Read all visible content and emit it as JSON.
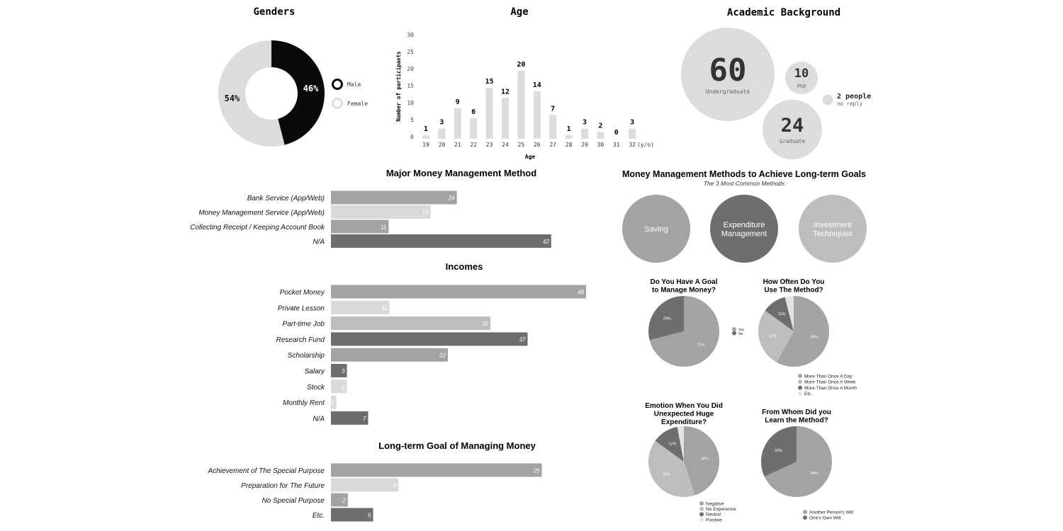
{
  "colors": {
    "black": "#0a0a0a",
    "light": "#dcdcdc",
    "mid": "#a3a3a3",
    "midlight": "#bdbdbd",
    "pale": "#d9d9d9",
    "dark": "#6e6e6e",
    "label": "#222222"
  },
  "chart_data": [
    {
      "id": "genders",
      "type": "pie",
      "title": "Genders",
      "slices": [
        {
          "label": "Male",
          "value": 46,
          "display": "46%",
          "color": "#0a0a0a"
        },
        {
          "label": "Female",
          "value": 54,
          "display": "54%",
          "color": "#dcdcdc"
        }
      ]
    },
    {
      "id": "age",
      "type": "bar",
      "title": "Age",
      "xlabel": "Age",
      "ylabel": "Number of participants",
      "unit": "(y/o)",
      "ylim": [
        0,
        30
      ],
      "yticks": [
        "0",
        "5",
        "10",
        "15",
        "20",
        "25",
        "30"
      ],
      "categories": [
        "19",
        "20",
        "21",
        "22",
        "23",
        "24",
        "25",
        "26",
        "27",
        "28",
        "29",
        "30",
        "31",
        "32"
      ],
      "values": [
        1,
        3,
        9,
        6,
        15,
        12,
        20,
        14,
        7,
        1,
        3,
        2,
        0,
        3
      ]
    },
    {
      "id": "academic",
      "type": "bubble",
      "title": "Academic Background",
      "items": [
        {
          "value": "60",
          "label": "Undergraduate"
        },
        {
          "value": "10",
          "label": "PhD"
        },
        {
          "value": "24",
          "label": "Graduate"
        },
        {
          "value": "2 people",
          "label": "no reply"
        }
      ]
    },
    {
      "id": "money-method",
      "type": "bar",
      "orientation": "horizontal",
      "title": "Major Money Management Method",
      "categories": [
        "Bank Service (App/Web)",
        "Money Management Service (App/Web)",
        "Collecting Receipt / Keeping Account Book",
        "N/A"
      ],
      "values": [
        24,
        19,
        11,
        42
      ]
    },
    {
      "id": "incomes",
      "type": "bar",
      "orientation": "horizontal",
      "title": "Incomes",
      "categories": [
        "Pocket Money",
        "Private Lesson",
        "Part-time Job",
        "Research Fund",
        "Scholarship",
        "Salary",
        "Stock",
        "Monthly Rent",
        "N/A"
      ],
      "values": [
        48,
        11,
        30,
        37,
        22,
        3,
        3,
        1,
        7
      ]
    },
    {
      "id": "long-term-goal",
      "type": "bar",
      "orientation": "horizontal",
      "title": "Long-term Goal of Managing Money",
      "categories": [
        "Achievement of The Special Purpose",
        "Preparation for The Future",
        "No Special Purpose",
        "Etc."
      ],
      "values": [
        25,
        8,
        2,
        5
      ]
    },
    {
      "id": "methods-goals",
      "type": "bubble",
      "title": "Money Management Methods to Achieve Long-term Goals",
      "subtitle": "The 3 Most Common Methods",
      "items": [
        "Saving",
        "Expenditure Management",
        "Investment Techniques"
      ]
    },
    {
      "id": "have-goal",
      "type": "pie",
      "title": "Do You Have A Goal to Manage Money?",
      "slices": [
        {
          "label": "Yes",
          "value": 71,
          "display": "71%",
          "color": "#a3a3a3"
        },
        {
          "label": "No",
          "value": 29,
          "display": "29%",
          "color": "#6e6e6e"
        }
      ]
    },
    {
      "id": "how-often",
      "type": "pie",
      "title": "How Often Do You Use The Method?",
      "slices": [
        {
          "label": "More Than Once A Day",
          "value": 58,
          "display": "58%",
          "color": "#a3a3a3"
        },
        {
          "label": "More Than Once A Week",
          "value": 27,
          "display": "27%",
          "color": "#bdbdbd"
        },
        {
          "label": "More Than Once A Month",
          "value": 11,
          "display": "11%",
          "color": "#6e6e6e"
        },
        {
          "label": "Etc.",
          "value": 4,
          "display": "",
          "color": "#e3e3e3"
        }
      ]
    },
    {
      "id": "emotion",
      "type": "pie",
      "title": "Emotion When You Did Unexpected Huge Expenditure?",
      "slices": [
        {
          "label": "Negative",
          "value": 45,
          "display": "45%",
          "color": "#a3a3a3"
        },
        {
          "label": "No Experience",
          "value": 40,
          "display": "40%",
          "color": "#bdbdbd"
        },
        {
          "label": "Neutral",
          "value": 12,
          "display": "12%",
          "color": "#6e6e6e"
        },
        {
          "label": "Positive",
          "value": 3,
          "display": "",
          "color": "#e3e3e3"
        }
      ]
    },
    {
      "id": "from-whom",
      "type": "pie",
      "title": "From Whom Did you Learn the Method?",
      "slices": [
        {
          "label": "Another Person's Will",
          "value": 68,
          "display": "68%",
          "color": "#a3a3a3"
        },
        {
          "label": "One's Own Will",
          "value": 32,
          "display": "32%",
          "color": "#6e6e6e"
        }
      ]
    }
  ]
}
